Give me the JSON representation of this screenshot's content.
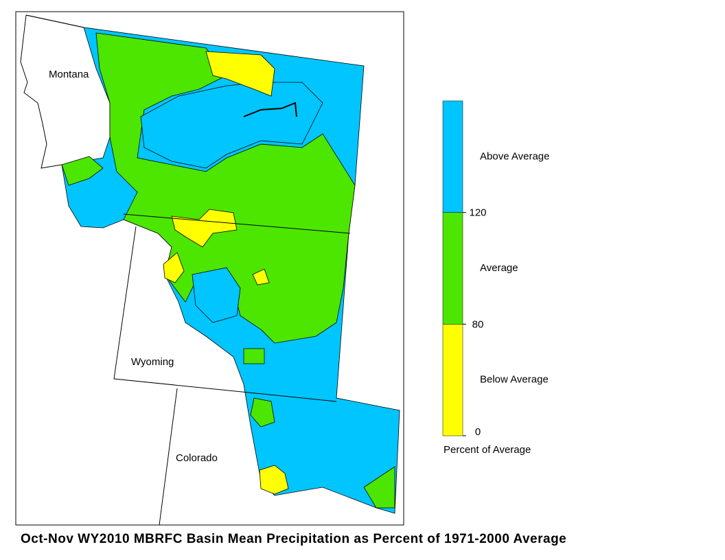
{
  "map": {
    "title": "Oct-Nov WY2010 MBRFC Basin Mean Precipitation as Percent of 1971-2000 Average",
    "states": [
      "Montana",
      "Wyoming",
      "Colorado"
    ],
    "legend": {
      "title": "Percent of Average",
      "classes": [
        {
          "label": "Below Average",
          "color": "#ffff00"
        },
        {
          "label": "Average",
          "color": "#4ce600"
        },
        {
          "label": "Above Average",
          "color": "#00c5ff"
        }
      ],
      "ticks": [
        0,
        80,
        120
      ]
    }
  }
}
